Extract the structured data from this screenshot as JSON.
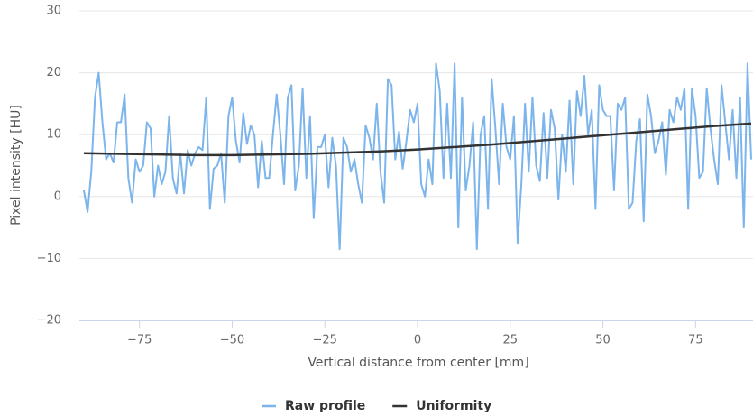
{
  "chart_data": {
    "type": "line",
    "xlabel": "Vertical distance from center [mm]",
    "ylabel": "Pixel intensity [HU]",
    "xlim": [
      -90,
      90
    ],
    "ylim": [
      -20,
      30
    ],
    "xticks": [
      {
        "value": -75,
        "label": "−75"
      },
      {
        "value": -50,
        "label": "−50"
      },
      {
        "value": -25,
        "label": "−25"
      },
      0,
      25,
      50,
      75
    ],
    "yticks": [
      {
        "value": -20,
        "label": "−20"
      },
      {
        "value": -10,
        "label": "−10"
      },
      0,
      10,
      20,
      30
    ],
    "grid": true,
    "legend": "bottom",
    "series": [
      {
        "name": "Raw profile",
        "color": "#7cb5ec",
        "x": [
          -90,
          -89,
          -88,
          -87,
          -86,
          -85,
          -84,
          -83,
          -82,
          -81,
          -80,
          -79,
          -78,
          -77,
          -76,
          -75,
          -74,
          -73,
          -72,
          -71,
          -70,
          -69,
          -68,
          -67,
          -66,
          -65,
          -64,
          -63,
          -62,
          -61,
          -60,
          -59,
          -58,
          -57,
          -56,
          -55,
          -54,
          -53,
          -52,
          -51,
          -50,
          -49,
          -48,
          -47,
          -46,
          -45,
          -44,
          -43,
          -42,
          -41,
          -40,
          -39,
          -38,
          -37,
          -36,
          -35,
          -34,
          -33,
          -32,
          -31,
          -30,
          -29,
          -28,
          -27,
          -26,
          -25,
          -24,
          -23,
          -22,
          -21,
          -20,
          -19,
          -18,
          -17,
          -16,
          -15,
          -14,
          -13,
          -12,
          -11,
          -10,
          -9,
          -8,
          -7,
          -6,
          -5,
          -4,
          -3,
          -2,
          -1,
          0,
          1,
          2,
          3,
          4,
          5,
          6,
          7,
          8,
          9,
          10,
          11,
          12,
          13,
          14,
          15,
          16,
          17,
          18,
          19,
          20,
          21,
          22,
          23,
          24,
          25,
          26,
          27,
          28,
          29,
          30,
          31,
          32,
          33,
          34,
          35,
          36,
          37,
          38,
          39,
          40,
          41,
          42,
          43,
          44,
          45,
          46,
          47,
          48,
          49,
          50,
          51,
          52,
          53,
          54,
          55,
          56,
          57,
          58,
          59,
          60,
          61,
          62,
          63,
          64,
          65,
          66,
          67,
          68,
          69,
          70,
          71,
          72,
          73,
          74,
          75,
          76,
          77,
          78,
          79,
          80,
          81,
          82,
          83,
          84,
          85,
          86,
          87,
          88,
          89,
          90
        ],
        "values": [
          1,
          -2.5,
          4,
          16,
          20,
          12,
          6,
          7,
          5.5,
          12,
          12,
          16.5,
          3,
          -1,
          6,
          4,
          5,
          12,
          11,
          0,
          5,
          2,
          4,
          13,
          3,
          0.5,
          7,
          0.5,
          7.5,
          5,
          7,
          8,
          7.5,
          16,
          -2,
          4.5,
          5,
          7,
          -1,
          13,
          16,
          9,
          5.5,
          13.5,
          8.5,
          11.5,
          10,
          1.5,
          9,
          3,
          3,
          10,
          16.5,
          10,
          2,
          16,
          18,
          1,
          5,
          17.5,
          3,
          13,
          -3.5,
          8,
          8,
          10,
          1.5,
          9.5,
          5,
          -8.5,
          9.5,
          8,
          4,
          6,
          2,
          -1,
          11.5,
          9.5,
          6,
          15,
          4,
          -1,
          19,
          18,
          6,
          10.5,
          4.5,
          9,
          14,
          12,
          15,
          2,
          0,
          6,
          2,
          21.5,
          17,
          3,
          15,
          3,
          21.5,
          -5,
          16,
          1,
          5,
          12,
          -8.5,
          10,
          13,
          -2,
          19,
          11,
          2,
          15,
          8,
          6,
          13,
          -7.5,
          2,
          15,
          4,
          16,
          5,
          2.5,
          13.5,
          3,
          14,
          11,
          -0.5,
          10,
          4,
          15.5,
          2,
          17,
          13,
          19.5,
          10,
          14,
          -2,
          18,
          14,
          13,
          13,
          1,
          15,
          14,
          16,
          -2,
          -1,
          9,
          12.5,
          -4,
          16.5,
          13,
          7,
          9,
          12,
          3.5,
          14,
          12,
          16,
          14,
          17.5,
          -2,
          17.5,
          13,
          3,
          4,
          17.5,
          11,
          6,
          2,
          18,
          12,
          6,
          14,
          3,
          16,
          -5,
          21.5,
          6
        ]
      },
      {
        "name": "Uniformity",
        "color": "#333333",
        "x": [
          -90,
          -80,
          -70,
          -60,
          -50,
          -40,
          -30,
          -20,
          -10,
          0,
          10,
          20,
          30,
          40,
          50,
          60,
          70,
          80,
          90
        ],
        "values": [
          7.0,
          6.9,
          6.8,
          6.7,
          6.7,
          6.8,
          6.9,
          7.1,
          7.3,
          7.6,
          8.0,
          8.4,
          8.9,
          9.4,
          9.9,
          10.4,
          10.9,
          11.4,
          11.8
        ]
      }
    ]
  }
}
